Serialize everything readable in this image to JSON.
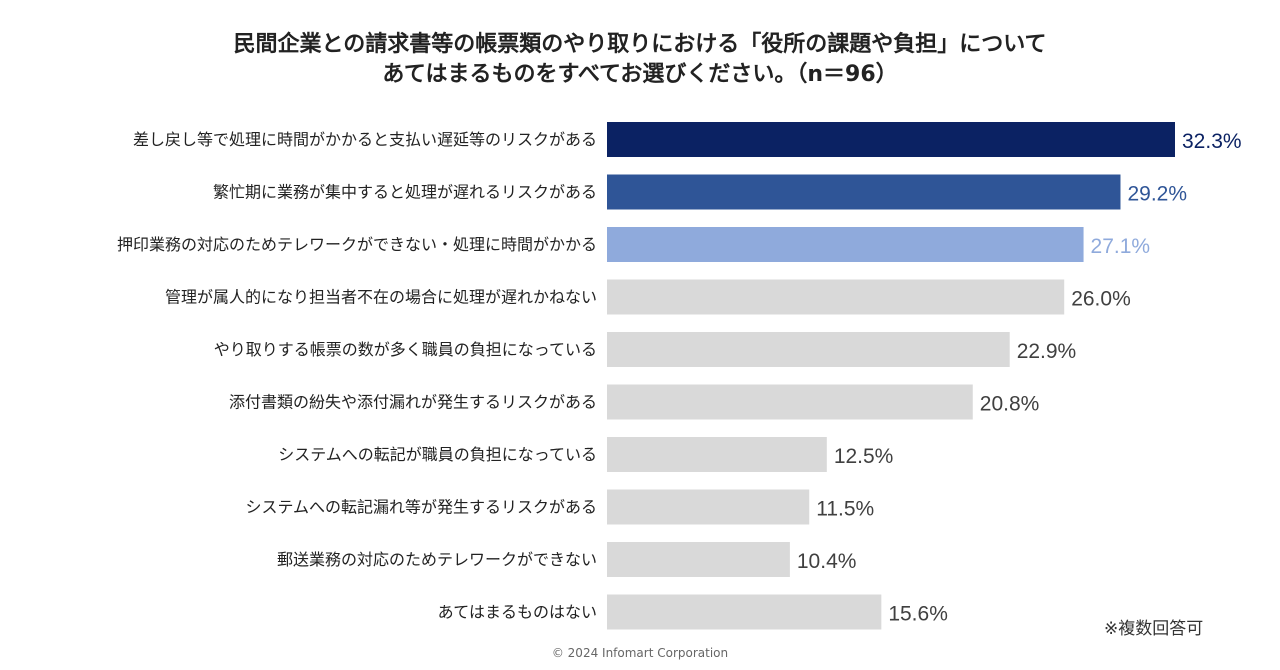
{
  "title": {
    "line1": "民間企業との請求書等の帳票類のやり取りにおける「役所の課題や負担」について",
    "line2": "あてはまるものをすべてお選びください。（n＝96）"
  },
  "note": "※複数回答可",
  "copyright": "© 2024 Infomart Corporation",
  "chart_data": {
    "type": "bar",
    "orientation": "horizontal",
    "title": "民間企業との請求書等の帳票類のやり取りにおける「役所の課題や負担」について あてはまるものをすべてお選びください。（n＝96）",
    "xlabel": "",
    "ylabel": "",
    "xlim": [
      0,
      32.3
    ],
    "grid": false,
    "categories": [
      "差し戻し等で処理に時間がかかると支払い遅延等のリスクがある",
      "繁忙期に業務が集中すると処理が遅れるリスクがある",
      "押印業務の対応のためテレワークができない・処理に時間がかかる",
      "管理が属人的になり担当者不在の場合に処理が遅れかねない",
      "やり取りする帳票の数が多く職員の負担になっている",
      "添付書類の紛失や添付漏れが発生するリスクがある",
      "システムへの転記が職員の負担になっている",
      "システムへの転記漏れ等が発生するリスクがある",
      "郵送業務の対応のためテレワークができない",
      "あてはまるものはない"
    ],
    "values": [
      32.3,
      29.2,
      27.1,
      26.0,
      22.9,
      20.8,
      12.5,
      11.5,
      10.4,
      15.6
    ],
    "labels": [
      "32.3%",
      "29.2%",
      "27.1%",
      "26.0%",
      "22.9%",
      "20.8%",
      "12.5%",
      "11.5%",
      "10.4%",
      "15.6%"
    ],
    "bar_colors": [
      "#0b2263",
      "#2f5597",
      "#8faadc",
      "#d9d9d9",
      "#d9d9d9",
      "#d9d9d9",
      "#d9d9d9",
      "#d9d9d9",
      "#d9d9d9",
      "#d9d9d9"
    ],
    "label_colors": [
      "#0b2263",
      "#2f5597",
      "#8faadc",
      "#404040",
      "#404040",
      "#404040",
      "#404040",
      "#404040",
      "#404040",
      "#404040"
    ]
  }
}
